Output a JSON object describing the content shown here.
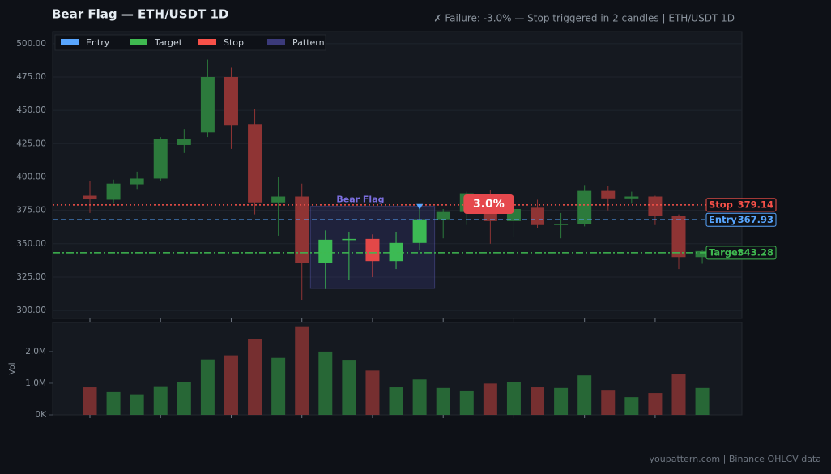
{
  "chart_data": [
    {
      "type": "candlestick",
      "title": "Bear Flag  —  ETH/USDT 1D",
      "subtitle": "✗ Failure: -3.0% — Stop triggered in 2 candles  |  ETH/USDT 1D",
      "open": [
        386,
        383,
        394.5,
        398.8,
        424,
        433.5,
        475,
        439.6,
        381,
        385.4,
        335.4,
        353,
        353.6,
        337,
        350.6,
        368.3,
        373.8,
        381,
        367,
        377,
        364,
        365,
        389.6,
        384,
        385.4,
        371,
        340
      ],
      "high": [
        397,
        398,
        404,
        430,
        436,
        488,
        482,
        451,
        400,
        395,
        360,
        359,
        357,
        359,
        378,
        376,
        389,
        390,
        381,
        383,
        373,
        394,
        393,
        389,
        386,
        372,
        345
      ],
      "low": [
        373,
        380,
        391,
        397,
        418,
        430,
        421,
        372,
        356,
        308,
        316,
        323,
        325,
        331,
        345,
        354,
        364,
        350,
        355,
        362,
        354,
        363,
        375,
        380,
        364,
        331,
        335
      ],
      "close": [
        383.5,
        395,
        398.8,
        428.7,
        428.7,
        475,
        439,
        381,
        385.4,
        335.4,
        353,
        353.6,
        337,
        350.6,
        368.3,
        373.8,
        387.8,
        367,
        376,
        364,
        365,
        389.6,
        384,
        385.4,
        371,
        340,
        344.5
      ],
      "up_color": "#2c7a3c",
      "down_color": "#8f3434",
      "pattern_up_color": "#3cba54",
      "pattern_down_color": "#e34848",
      "ylim": [
        294,
        509
      ],
      "yticks": [
        {
          "value": 300,
          "label": "300.00"
        },
        {
          "value": 325,
          "label": "325.00"
        },
        {
          "value": 350,
          "label": "350.00"
        },
        {
          "value": 375,
          "label": "375.00"
        },
        {
          "value": 400,
          "label": "400.00"
        },
        {
          "value": 425,
          "label": "425.00"
        },
        {
          "value": 450,
          "label": "450.00"
        },
        {
          "value": 475,
          "label": "475.00"
        },
        {
          "value": 500,
          "label": "500.00"
        }
      ],
      "xticks": [
        0,
        3,
        6,
        9,
        12,
        15,
        18,
        21,
        24
      ],
      "grid": true,
      "legend": [
        {
          "name": "Entry",
          "color": "#58a6ff"
        },
        {
          "name": "Target",
          "color": "#3fb950"
        },
        {
          "name": "Stop",
          "color": "#f85149"
        },
        {
          "name": "Pattern",
          "color": "#3b3a7a"
        }
      ],
      "levels": [
        {
          "name": "Stop",
          "value": 379.14,
          "color": "#f85149",
          "dash": "2,3"
        },
        {
          "name": "Entry",
          "value": 367.93,
          "color": "#58a6ff",
          "dash": "6,4"
        },
        {
          "name": "Target",
          "value": 343.28,
          "color": "#3fb950",
          "dash": "9,3,2,3"
        }
      ],
      "pattern": {
        "label": "Bear Flag",
        "start": 10,
        "end": 14,
        "low": 316.5,
        "high": 378
      },
      "entry_marker": 14,
      "badge": {
        "text": "3.0%",
        "at": 17
      }
    },
    {
      "type": "bar",
      "ylabel": "Vol",
      "values": [
        870000,
        720000,
        650000,
        880000,
        1050000,
        1750000,
        1880000,
        2400000,
        1800000,
        2800000,
        2000000,
        1740000,
        1400000,
        870000,
        1120000,
        850000,
        770000,
        990000,
        1050000,
        870000,
        850000,
        1250000,
        790000,
        560000,
        690000,
        1280000,
        850000
      ],
      "ylim": [
        0,
        2920000
      ],
      "yticks": [
        {
          "value": 0,
          "label": "0K"
        },
        {
          "value": 1000000,
          "label": "1.0M"
        },
        {
          "value": 2000000,
          "label": "2.0M"
        }
      ]
    }
  ],
  "footer": "youpattern.com  |  Binance OHLCV data"
}
